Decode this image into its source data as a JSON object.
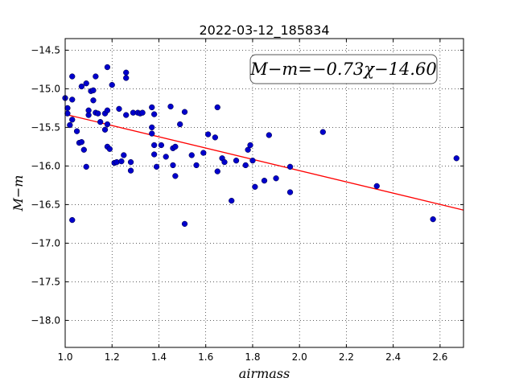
{
  "chart_data": {
    "type": "scatter",
    "title": "2022-03-12_185834",
    "xlabel": "airmass",
    "ylabel": "M−m",
    "xlim": [
      1.0,
      2.7
    ],
    "ylim": [
      -18.35,
      -14.35
    ],
    "y_inverted": true,
    "grid": true,
    "x_ticks": [
      1.0,
      1.2,
      1.4,
      1.6,
      1.8,
      2.0,
      2.2,
      2.4,
      2.6
    ],
    "x_tick_labels": [
      "1.0",
      "1.2",
      "1.4",
      "1.6",
      "1.8",
      "2.0",
      "2.2",
      "2.4",
      "2.6"
    ],
    "y_ticks": [
      -14.5,
      -15.0,
      -15.5,
      -16.0,
      -16.5,
      -17.0,
      -17.5,
      -18.0
    ],
    "y_tick_labels": [
      "−14.5",
      "−15.0",
      "−15.5",
      "−16.0",
      "−16.5",
      "−17.0",
      "−17.5",
      "−18.0"
    ],
    "fit": {
      "slope": -0.73,
      "intercept": -14.6,
      "x_range": [
        1.0,
        2.7
      ],
      "color": "#ff0000"
    },
    "annotation": "M−m=−0.73χ−14.60",
    "annotation_placement": "top-right",
    "point_color": "#0000cc",
    "points": [
      [
        1.0,
        -15.12
      ],
      [
        1.01,
        -15.32
      ],
      [
        1.01,
        -15.25
      ],
      [
        1.02,
        -15.47
      ],
      [
        1.03,
        -14.84
      ],
      [
        1.03,
        -15.14
      ],
      [
        1.03,
        -15.4
      ],
      [
        1.03,
        -16.7
      ],
      [
        1.05,
        -15.55
      ],
      [
        1.06,
        -15.7
      ],
      [
        1.07,
        -14.97
      ],
      [
        1.07,
        -15.69
      ],
      [
        1.08,
        -15.79
      ],
      [
        1.09,
        -16.01
      ],
      [
        1.09,
        -14.93
      ],
      [
        1.1,
        -15.34
      ],
      [
        1.1,
        -15.28
      ],
      [
        1.11,
        -15.03
      ],
      [
        1.12,
        -15.15
      ],
      [
        1.12,
        -15.02
      ],
      [
        1.13,
        -14.84
      ],
      [
        1.13,
        -15.31
      ],
      [
        1.14,
        -15.32
      ],
      [
        1.15,
        -15.43
      ],
      [
        1.17,
        -15.32
      ],
      [
        1.17,
        -15.53
      ],
      [
        1.18,
        -15.28
      ],
      [
        1.18,
        -15.46
      ],
      [
        1.18,
        -15.75
      ],
      [
        1.18,
        -14.72
      ],
      [
        1.19,
        -15.78
      ],
      [
        1.2,
        -14.95
      ],
      [
        1.21,
        -15.96
      ],
      [
        1.22,
        -15.95
      ],
      [
        1.23,
        -15.26
      ],
      [
        1.24,
        -15.94
      ],
      [
        1.25,
        -15.86
      ],
      [
        1.26,
        -15.34
      ],
      [
        1.26,
        -14.79
      ],
      [
        1.26,
        -14.86
      ],
      [
        1.28,
        -15.95
      ],
      [
        1.28,
        -16.06
      ],
      [
        1.29,
        -15.31
      ],
      [
        1.31,
        -15.31
      ],
      [
        1.32,
        -15.32
      ],
      [
        1.33,
        -15.31
      ],
      [
        1.37,
        -15.24
      ],
      [
        1.37,
        -15.5
      ],
      [
        1.37,
        -15.58
      ],
      [
        1.38,
        -15.73
      ],
      [
        1.38,
        -15.85
      ],
      [
        1.38,
        -15.33
      ],
      [
        1.39,
        -16.01
      ],
      [
        1.41,
        -15.73
      ],
      [
        1.43,
        -15.88
      ],
      [
        1.45,
        -15.23
      ],
      [
        1.46,
        -15.77
      ],
      [
        1.46,
        -15.99
      ],
      [
        1.47,
        -16.13
      ],
      [
        1.47,
        -15.75
      ],
      [
        1.49,
        -15.46
      ],
      [
        1.51,
        -15.3
      ],
      [
        1.51,
        -16.75
      ],
      [
        1.54,
        -15.86
      ],
      [
        1.56,
        -15.99
      ],
      [
        1.59,
        -15.83
      ],
      [
        1.61,
        -15.59
      ],
      [
        1.64,
        -15.63
      ],
      [
        1.65,
        -15.24
      ],
      [
        1.65,
        -16.07
      ],
      [
        1.67,
        -15.9
      ],
      [
        1.68,
        -15.95
      ],
      [
        1.71,
        -16.45
      ],
      [
        1.73,
        -15.93
      ],
      [
        1.77,
        -15.99
      ],
      [
        1.78,
        -15.79
      ],
      [
        1.79,
        -15.73
      ],
      [
        1.8,
        -15.93
      ],
      [
        1.81,
        -16.27
      ],
      [
        1.85,
        -16.19
      ],
      [
        1.87,
        -15.6
      ],
      [
        1.9,
        -16.16
      ],
      [
        1.96,
        -16.34
      ],
      [
        1.96,
        -16.01
      ],
      [
        2.1,
        -15.56
      ],
      [
        2.33,
        -16.26
      ],
      [
        2.57,
        -16.69
      ],
      [
        2.67,
        -15.9
      ]
    ]
  }
}
